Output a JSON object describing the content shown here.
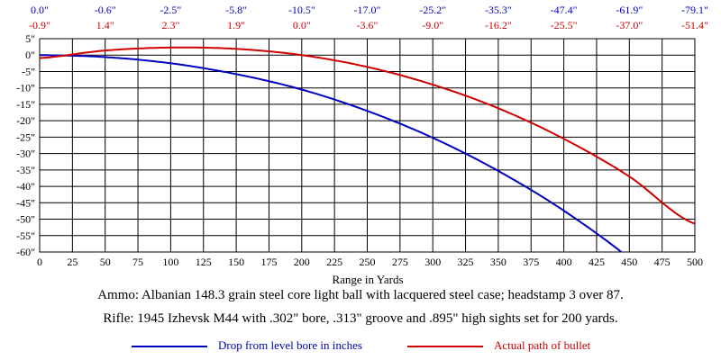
{
  "chart_data": {
    "type": "line",
    "xlabel": "Range in Yards",
    "ylabel": "",
    "xlim": [
      0,
      500
    ],
    "ylim": [
      -60,
      5
    ],
    "x_ticks": [
      0,
      25,
      50,
      75,
      100,
      125,
      150,
      175,
      200,
      225,
      250,
      275,
      300,
      325,
      350,
      375,
      400,
      425,
      450,
      475,
      500
    ],
    "y_ticks": [
      5,
      0,
      -5,
      -10,
      -15,
      -20,
      -25,
      -30,
      -35,
      -40,
      -45,
      -50,
      -55,
      -60
    ],
    "y_tick_labels": [
      "5\"",
      "0\"",
      "-5\"",
      "-10\"",
      "-15\"",
      "-20\"",
      "-25\"",
      "-30\"",
      "-35\"",
      "-40\"",
      "-45\"",
      "-50\"",
      "-55\"",
      "-60\""
    ],
    "grid": true,
    "top_rows": {
      "x": [
        0,
        50,
        100,
        150,
        200,
        250,
        300,
        350,
        400,
        450,
        500
      ],
      "drop_labels": [
        "0.0\"",
        "-0.6\"",
        "-2.5\"",
        "-5.8\"",
        "-10.5\"",
        "-17.0\"",
        "-25.2\"",
        "-35.3\"",
        "-47.4\"",
        "-61.9\"",
        "-79.1\""
      ],
      "path_labels": [
        "-0.9\"",
        "1.4\"",
        "2.3\"",
        "1.9\"",
        "0.0\"",
        "-3.6\"",
        "-9.0\"",
        "-16.2\"",
        "-25.5\"",
        "-37.0\"",
        "-51.4\""
      ]
    },
    "series": [
      {
        "name": "Drop from level bore in inches",
        "color": "#0000c0",
        "x": [
          0,
          50,
          100,
          150,
          200,
          250,
          300,
          350,
          400,
          450,
          500
        ],
        "values": [
          0.0,
          -0.6,
          -2.5,
          -5.8,
          -10.5,
          -17.0,
          -25.2,
          -35.3,
          -47.4,
          -61.9,
          -79.1
        ]
      },
      {
        "name": "Actual path of bullet",
        "color": "#d00000",
        "x": [
          0,
          50,
          100,
          150,
          200,
          250,
          300,
          350,
          400,
          450,
          500
        ],
        "values": [
          -0.9,
          1.4,
          2.3,
          1.9,
          0.0,
          -3.6,
          -9.0,
          -16.2,
          -25.5,
          -37.0,
          -51.4
        ]
      }
    ]
  },
  "notes": {
    "ammo": "Ammo:  Albanian 148.3 grain steel core light ball with lacquered steel case; headstamp 3 over 87.",
    "rifle": "Rifle:  1945 Izhevsk M44 with .302\" bore, .313\" groove and .895\" high sights set for 200 yards."
  },
  "legend": [
    {
      "label": "Drop from level bore in inches",
      "color": "#0000c0"
    },
    {
      "label": "Actual path of bullet",
      "color": "#d00000"
    }
  ]
}
